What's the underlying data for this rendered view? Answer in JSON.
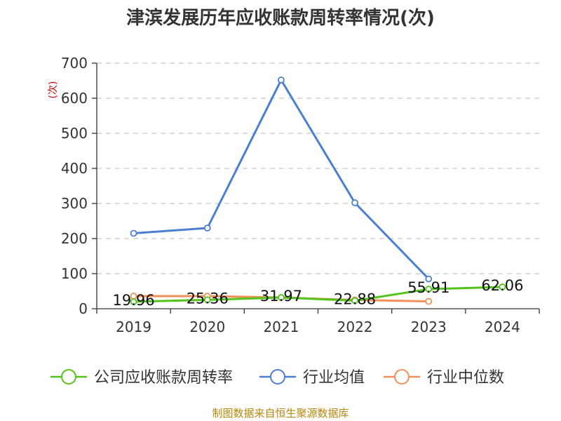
{
  "chart_data": {
    "type": "line",
    "title": "津滨发展历年应收账款周转率情况(次)",
    "ylabel": "(次)",
    "xlabel": "",
    "categories": [
      "2019",
      "2020",
      "2021",
      "2022",
      "2023",
      "2024"
    ],
    "ylim": [
      0,
      700
    ],
    "yticks": [
      0,
      100,
      200,
      300,
      400,
      500,
      600,
      700
    ],
    "grid": true,
    "legend_position": "bottom",
    "series": [
      {
        "name": "公司应收账款周转率",
        "color": "#52c41a",
        "values": [
          19.96,
          25.36,
          31.97,
          22.88,
          55.91,
          62.06
        ],
        "labels": [
          "19.96",
          "25.36",
          "31.97",
          "22.88",
          "55.91",
          "62.06"
        ]
      },
      {
        "name": "行业均值",
        "color": "#4a7fd4",
        "values": [
          215,
          230,
          652,
          302,
          85,
          null
        ]
      },
      {
        "name": "行业中位数",
        "color": "#f0915a",
        "values": [
          36,
          36,
          32,
          25,
          21,
          null
        ]
      }
    ]
  },
  "source": "制图数据来自恒生聚源数据库"
}
